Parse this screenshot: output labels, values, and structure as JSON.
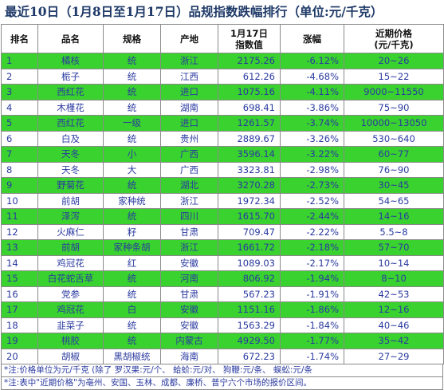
{
  "title": "最近10日（1月8日至1月17日）品规指数跌幅排行（单位:元/千克）",
  "headers": {
    "rank": "排名",
    "name": "品名",
    "spec": "规格",
    "origin": "产地",
    "index_l1": "1月17日",
    "index_l2": "指数值",
    "change": "涨幅",
    "price_l1": "近期价格",
    "price_l2": "(元/千克)"
  },
  "rows": [
    {
      "rank": "1",
      "name": "橘核",
      "spec": "统",
      "origin": "浙江",
      "index": "2175.26",
      "change": "-6.12%",
      "price": "20~26"
    },
    {
      "rank": "2",
      "name": "栀子",
      "spec": "统",
      "origin": "江西",
      "index": "612.26",
      "change": "-4.68%",
      "price": "15~22"
    },
    {
      "rank": "3",
      "name": "西红花",
      "spec": "统",
      "origin": "进口",
      "index": "1075.16",
      "change": "-4.11%",
      "price": "9000~11550"
    },
    {
      "rank": "4",
      "name": "木槿花",
      "spec": "统",
      "origin": "湖南",
      "index": "698.41",
      "change": "-3.86%",
      "price": "75~90"
    },
    {
      "rank": "5",
      "name": "西红花",
      "spec": "一级",
      "origin": "进口",
      "index": "1261.57",
      "change": "-3.74%",
      "price": "10000~13050"
    },
    {
      "rank": "6",
      "name": "白及",
      "spec": "统",
      "origin": "贵州",
      "index": "2889.67",
      "change": "-3.26%",
      "price": "530~640"
    },
    {
      "rank": "7",
      "name": "天冬",
      "spec": "小",
      "origin": "广西",
      "index": "3596.14",
      "change": "-3.22%",
      "price": "60~77"
    },
    {
      "rank": "8",
      "name": "天冬",
      "spec": "大",
      "origin": "广西",
      "index": "3323.81",
      "change": "-2.98%",
      "price": "76~90"
    },
    {
      "rank": "9",
      "name": "野菊花",
      "spec": "统",
      "origin": "湖北",
      "index": "3270.28",
      "change": "-2.73%",
      "price": "30~45"
    },
    {
      "rank": "10",
      "name": "前胡",
      "spec": "家种统",
      "origin": "浙江",
      "index": "1972.34",
      "change": "-2.52%",
      "price": "54~65"
    },
    {
      "rank": "11",
      "name": "泽泻",
      "spec": "统",
      "origin": "四川",
      "index": "1615.70",
      "change": "-2.44%",
      "price": "14~16"
    },
    {
      "rank": "12",
      "name": "火麻仁",
      "spec": "籽",
      "origin": "甘肃",
      "index": "709.47",
      "change": "-2.22%",
      "price": "5.5~8"
    },
    {
      "rank": "13",
      "name": "前胡",
      "spec": "家种条胡",
      "origin": "浙江",
      "index": "1661.72",
      "change": "-2.18%",
      "price": "57~70"
    },
    {
      "rank": "14",
      "name": "鸡冠花",
      "spec": "红",
      "origin": "安徽",
      "index": "1089.03",
      "change": "-2.17%",
      "price": "10~14"
    },
    {
      "rank": "15",
      "name": "白花蛇舌草",
      "spec": "统",
      "origin": "河南",
      "index": "806.92",
      "change": "-1.94%",
      "price": "8~10"
    },
    {
      "rank": "16",
      "name": "党参",
      "spec": "统",
      "origin": "甘肃",
      "index": "567.23",
      "change": "-1.91%",
      "price": "42~53"
    },
    {
      "rank": "17",
      "name": "鸡冠花",
      "spec": "白",
      "origin": "安徽",
      "index": "1151.16",
      "change": "-1.86%",
      "price": "12~16"
    },
    {
      "rank": "18",
      "name": "韭菜子",
      "spec": "统",
      "origin": "安徽",
      "index": "1563.29",
      "change": "-1.84%",
      "price": "40~46"
    },
    {
      "rank": "19",
      "name": "桃胶",
      "spec": "统",
      "origin": "内蒙古",
      "index": "4929.50",
      "change": "-1.77%",
      "price": "35~42"
    },
    {
      "rank": "20",
      "name": "胡椒",
      "spec": "黑胡椒统",
      "origin": "海南",
      "index": "672.23",
      "change": "-1.74%",
      "price": "27~29"
    }
  ],
  "notes": [
    "*注:价格单位为元/千克 (除了 罗汉果:元/个、 蛤蚧:元/对、 狗鞭:元/条、 蜈蚣:元/条",
    "*注:表中\"近期价格\"为亳州、安国、玉林、成都、廉桥、普宁六个市场的报价区间。"
  ]
}
